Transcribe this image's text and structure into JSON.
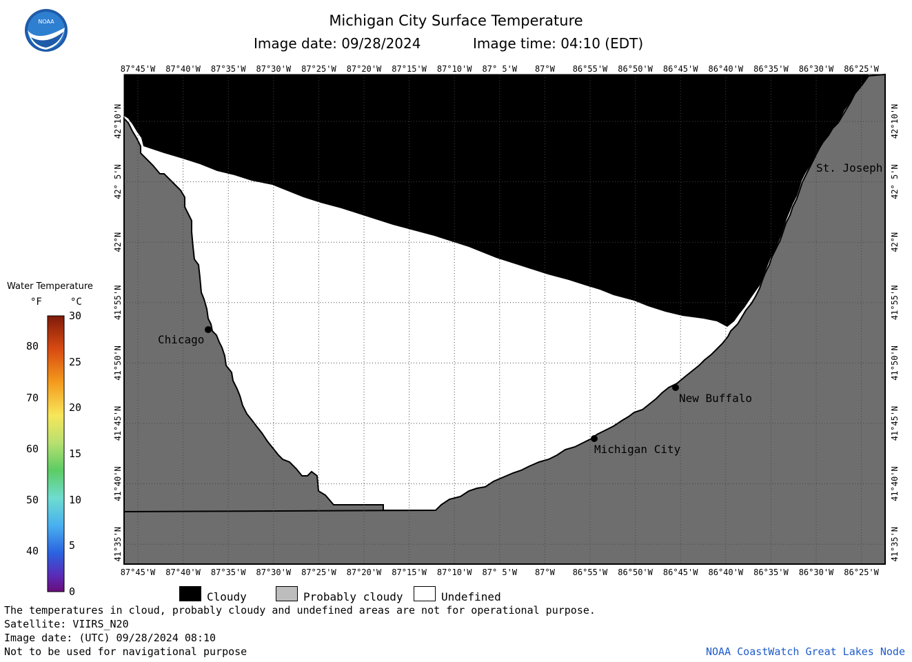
{
  "header": {
    "title": "Michigan City Surface Temperature",
    "image_date": "Image date: 09/28/2024",
    "image_time": "Image time: 04:10 (EDT)"
  },
  "logo": {
    "text": "NOAA"
  },
  "map": {
    "lon_labels": [
      "87°45'W",
      "87°40'W",
      "87°35'W",
      "87°30'W",
      "87°25'W",
      "87°20'W",
      "87°15'W",
      "87°10'W",
      "87° 5'W",
      "87°W",
      "86°55'W",
      "86°50'W",
      "86°45'W",
      "86°40'W",
      "86°35'W",
      "86°30'W",
      "86°25'W"
    ],
    "lat_labels": [
      "42°10'N",
      "42° 5'N",
      "42°N",
      "41°55'N",
      "41°50'N",
      "41°45'N",
      "41°40'N",
      "41°35'N"
    ],
    "places": [
      {
        "name": "Chicago"
      },
      {
        "name": "New Buffalo"
      },
      {
        "name": "Michigan City"
      },
      {
        "name": "St. Joseph"
      }
    ],
    "colors": {
      "cloudy": "#000000",
      "land": "#6e6e6e",
      "undefined": "#ffffff",
      "grid": "#555555"
    }
  },
  "colorbar": {
    "title": "Water Temperature",
    "unit_f": "°F",
    "unit_c": "°C",
    "f_ticks": [
      "80",
      "70",
      "60",
      "50",
      "40"
    ],
    "c_ticks": [
      "30",
      "25",
      "20",
      "15",
      "10",
      "5",
      "0"
    ]
  },
  "legend": {
    "cloudy": "Cloudy",
    "probably_cloudy": "Probably cloudy",
    "undefined": "Undefined",
    "colors": {
      "cloudy": "#000000",
      "probably_cloudy": "#bdbdbd",
      "undefined": "#ffffff"
    }
  },
  "footer": {
    "note": "The temperatures in cloud, probably cloudy and undefined areas are not for operational purpose.",
    "satellite": "Satellite: VIIRS_N20",
    "utc_date": "Image date: (UTC) 09/28/2024  08:10",
    "navigation": "Not to be used for navigational purpose",
    "credit": "NOAA CoastWatch Great Lakes Node"
  }
}
